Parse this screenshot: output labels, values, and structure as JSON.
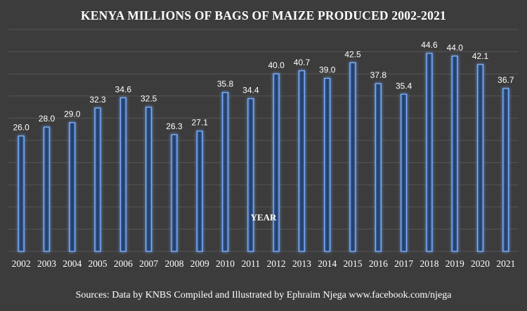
{
  "chart_data": {
    "type": "bar",
    "title": "KENYA MILLIONS OF BAGS OF MAIZE PRODUCED 2002-2021",
    "xlabel": "YEAR",
    "ylabel": "",
    "categories": [
      "2002",
      "2003",
      "2004",
      "2005",
      "2006",
      "2007",
      "2008",
      "2009",
      "2010",
      "2011",
      "2012",
      "2013",
      "2014",
      "2015",
      "2016",
      "2017",
      "2018",
      "2019",
      "2020",
      "2021"
    ],
    "values": [
      26.0,
      28.0,
      29.0,
      32.3,
      34.6,
      32.5,
      26.3,
      27.1,
      35.8,
      34.4,
      40.0,
      40.7,
      39.0,
      42.5,
      37.8,
      35.4,
      44.6,
      44.0,
      42.1,
      36.7
    ],
    "value_labels": [
      "26.0",
      "28.0",
      "29.0",
      "32.3",
      "34.6",
      "32.5",
      "26.3",
      "27.1",
      "35.8",
      "34.4",
      "40.0",
      "40.7",
      "39.0",
      "42.5",
      "37.8",
      "35.4",
      "44.6",
      "44.0",
      "42.1",
      "36.7"
    ],
    "ylim": [
      0,
      50
    ],
    "grid": true,
    "legend": "none"
  },
  "source_text": "Sources: Data by KNBS Compiled and Illustrated by Ephraim Njega www.facebook.com/njega",
  "colors": {
    "background": "#3c3c3c",
    "grid": "#555555",
    "bar_fill": "#2b4a78",
    "bar_edge": "#7fb2ff",
    "bar_glow": "#5c94ea",
    "text": "#ffffff"
  }
}
